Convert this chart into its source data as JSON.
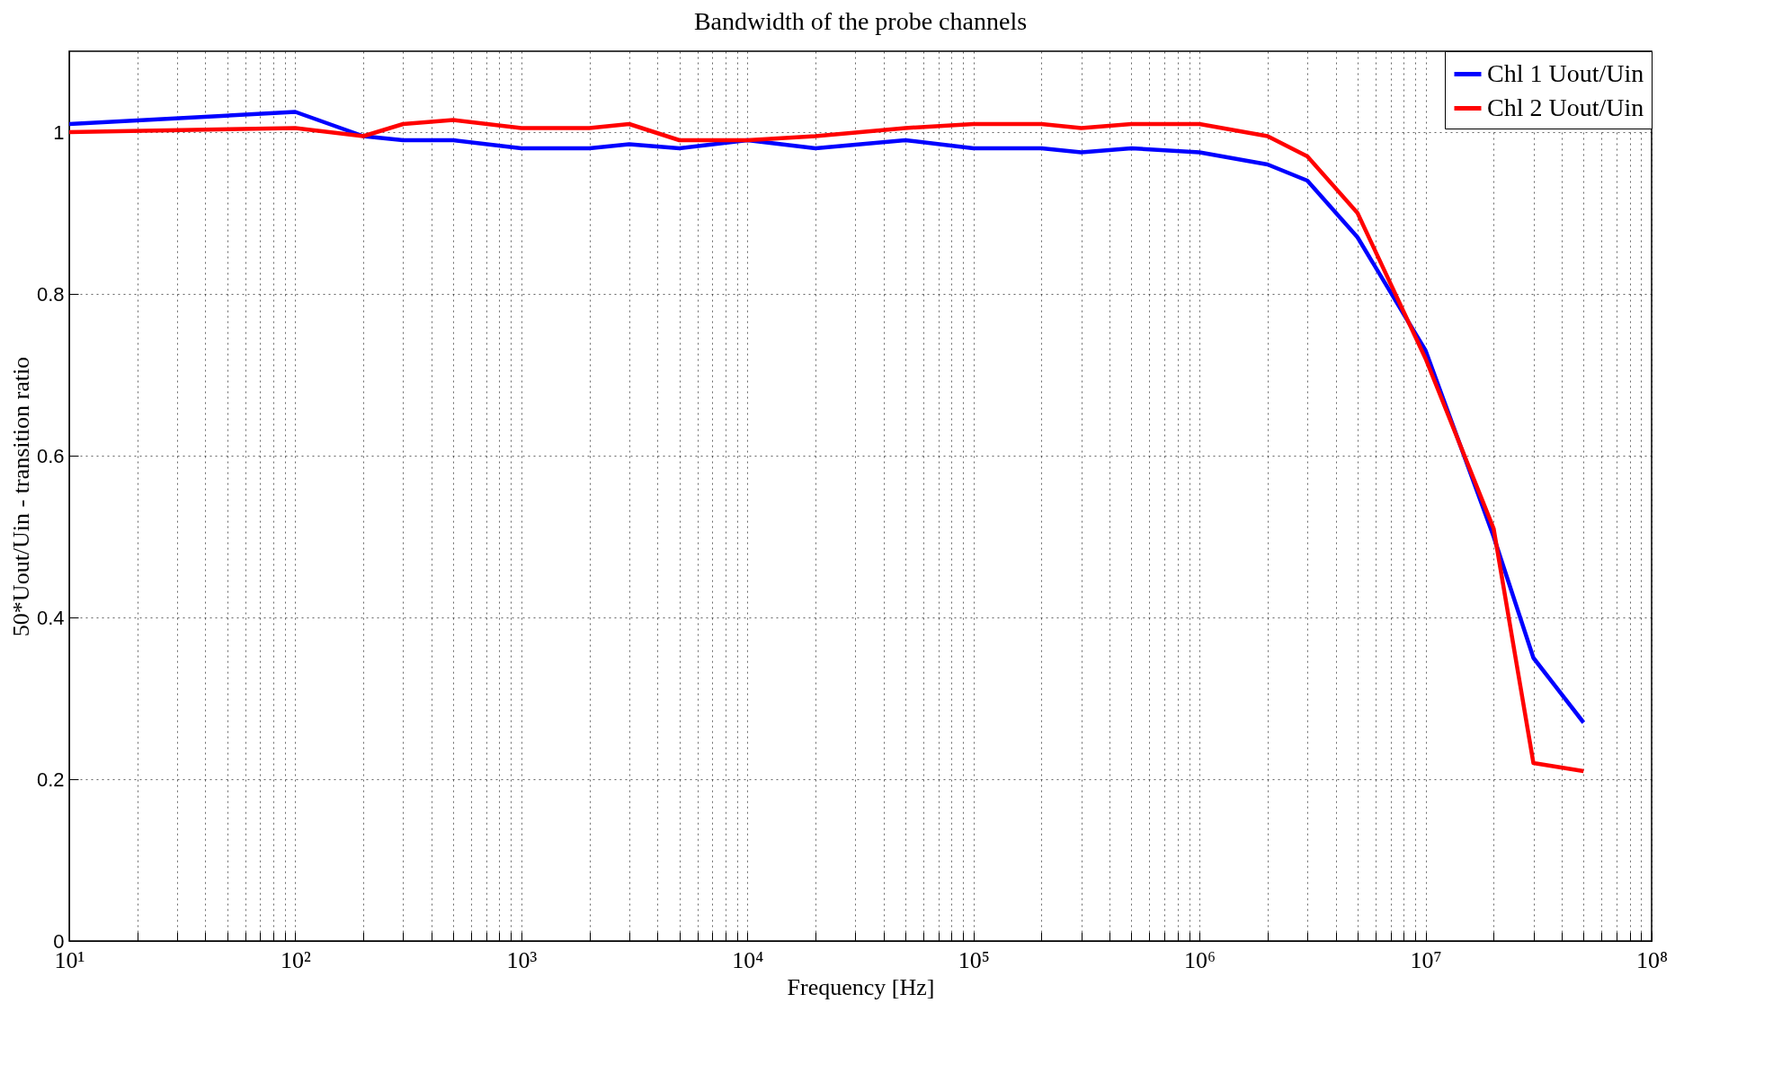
{
  "chart_data": {
    "type": "line",
    "title": "Bandwidth of the probe channels",
    "xlabel": "Frequency [Hz]",
    "ylabel": "50*Uout/Uin - transition ratio",
    "log": "x",
    "grid": true,
    "legend": "top right",
    "line_style": "solid",
    "marker": "none",
    "x": [
      10,
      100,
      200,
      300,
      500,
      1000,
      2000,
      3000,
      5000,
      10000,
      20000,
      50000,
      100000,
      200000,
      300000,
      500000,
      1000000,
      2000000,
      3000000,
      5000000,
      10000000,
      20000000,
      30000000,
      50000000
    ],
    "xlim": [
      10,
      100000000
    ],
    "ylim": [
      0,
      1.1
    ],
    "yticks": [
      0,
      0.2,
      0.4,
      0.6,
      0.8,
      1
    ],
    "xticks": [
      {
        "value": 10,
        "label": "10¹"
      },
      {
        "value": 20,
        "label": null
      },
      {
        "value": 30,
        "label": null
      },
      {
        "value": 40,
        "label": null
      },
      {
        "value": 50,
        "label": null
      },
      {
        "value": 60,
        "label": null
      },
      {
        "value": 70,
        "label": null
      },
      {
        "value": 80,
        "label": null
      },
      {
        "value": 90,
        "label": null
      },
      {
        "value": 100,
        "label": "10²"
      },
      {
        "value": 200,
        "label": null
      },
      {
        "value": 300,
        "label": null
      },
      {
        "value": 400,
        "label": null
      },
      {
        "value": 500,
        "label": null
      },
      {
        "value": 600,
        "label": null
      },
      {
        "value": 700,
        "label": null
      },
      {
        "value": 800,
        "label": null
      },
      {
        "value": 900,
        "label": null
      },
      {
        "value": 1000,
        "label": "10³"
      },
      {
        "value": 2000,
        "label": null
      },
      {
        "value": 3000,
        "label": null
      },
      {
        "value": 4000,
        "label": null
      },
      {
        "value": 5000,
        "label": null
      },
      {
        "value": 6000,
        "label": null
      },
      {
        "value": 7000,
        "label": null
      },
      {
        "value": 8000,
        "label": null
      },
      {
        "value": 9000,
        "label": null
      },
      {
        "value": 10000,
        "label": "10⁴"
      },
      {
        "value": 20000,
        "label": null
      },
      {
        "value": 30000,
        "label": null
      },
      {
        "value": 40000,
        "label": null
      },
      {
        "value": 50000,
        "label": null
      },
      {
        "value": 60000,
        "label": null
      },
      {
        "value": 70000,
        "label": null
      },
      {
        "value": 80000,
        "label": null
      },
      {
        "value": 90000,
        "label": null
      },
      {
        "value": 100000,
        "label": "10⁵"
      },
      {
        "value": 200000,
        "label": null
      },
      {
        "value": 300000,
        "label": null
      },
      {
        "value": 400000,
        "label": null
      },
      {
        "value": 500000,
        "label": null
      },
      {
        "value": 600000,
        "label": null
      },
      {
        "value": 700000,
        "label": null
      },
      {
        "value": 800000,
        "label": null
      },
      {
        "value": 900000,
        "label": null
      },
      {
        "value": 1000000,
        "label": "10⁶"
      },
      {
        "value": 2000000,
        "label": null
      },
      {
        "value": 3000000,
        "label": null
      },
      {
        "value": 4000000,
        "label": null
      },
      {
        "value": 5000000,
        "label": null
      },
      {
        "value": 6000000,
        "label": null
      },
      {
        "value": 7000000,
        "label": null
      },
      {
        "value": 8000000,
        "label": null
      },
      {
        "value": 9000000,
        "label": null
      },
      {
        "value": 10000000,
        "label": "10⁷"
      },
      {
        "value": 20000000,
        "label": null
      },
      {
        "value": 30000000,
        "label": null
      },
      {
        "value": 40000000,
        "label": null
      },
      {
        "value": 50000000,
        "label": null
      },
      {
        "value": 60000000,
        "label": null
      },
      {
        "value": 70000000,
        "label": null
      },
      {
        "value": 80000000,
        "label": null
      },
      {
        "value": 90000000,
        "label": null
      },
      {
        "value": 100000000,
        "label": "10⁸"
      }
    ],
    "series": [
      {
        "name": "Chl 1 Uout/Uin",
        "color": "#0000ff",
        "values": [
          1.01,
          1.025,
          0.995,
          0.99,
          0.99,
          0.98,
          0.98,
          0.985,
          0.98,
          0.99,
          0.98,
          0.99,
          0.98,
          0.98,
          0.975,
          0.98,
          0.975,
          0.96,
          0.94,
          0.87,
          0.73,
          0.5,
          0.35,
          0.27
        ]
      },
      {
        "name": "Chl 2 Uout/Uin",
        "color": "#ff0000",
        "values": [
          1.0,
          1.005,
          0.995,
          1.01,
          1.015,
          1.005,
          1.005,
          1.01,
          0.99,
          0.99,
          0.995,
          1.005,
          1.01,
          1.01,
          1.005,
          1.01,
          1.01,
          0.995,
          0.97,
          0.9,
          0.72,
          0.51,
          0.22,
          0.21
        ]
      }
    ]
  }
}
